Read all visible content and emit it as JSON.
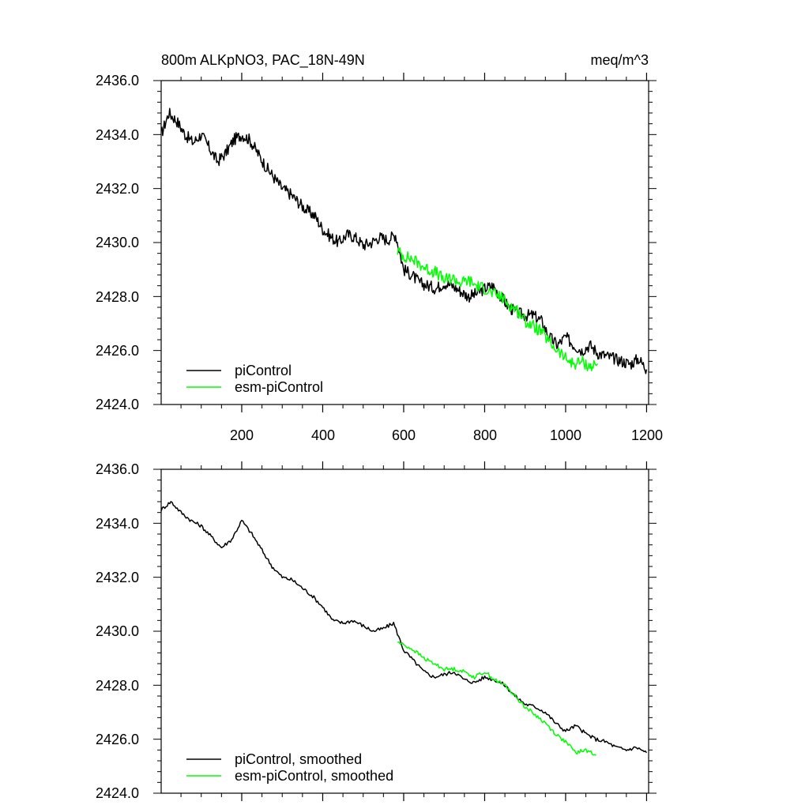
{
  "chart_data": [
    {
      "type": "line",
      "title_left": "800m ALKpNO3, PAC_18N-49N",
      "title_right": "meq/m^3",
      "xlabel": "",
      "ylabel": "",
      "xlim": [
        1,
        1205
      ],
      "ylim": [
        2424.0,
        2436.0
      ],
      "x_ticks": [
        "200",
        "400",
        "600",
        "800",
        "1000",
        "1200"
      ],
      "y_ticks": [
        "2424.0",
        "2426.0",
        "2428.0",
        "2430.0",
        "2432.0",
        "2434.0",
        "2436.0"
      ],
      "legend_position": "bottom-left",
      "series": [
        {
          "name": "piControl",
          "color": "#000000",
          "x": [
            1,
            20,
            40,
            60,
            80,
            100,
            120,
            140,
            160,
            180,
            200,
            220,
            240,
            260,
            280,
            300,
            320,
            340,
            360,
            380,
            400,
            420,
            440,
            460,
            480,
            500,
            520,
            540,
            560,
            580,
            600,
            620,
            640,
            660,
            680,
            700,
            720,
            740,
            760,
            780,
            800,
            820,
            840,
            860,
            880,
            900,
            920,
            940,
            960,
            980,
            1000,
            1020,
            1040,
            1060,
            1080,
            1100,
            1120,
            1140,
            1160,
            1180,
            1200
          ],
          "values": [
            2434.0,
            2434.8,
            2434.5,
            2434.0,
            2433.7,
            2434.0,
            2433.5,
            2433.0,
            2433.3,
            2433.8,
            2434.0,
            2433.8,
            2433.3,
            2432.8,
            2432.4,
            2432.0,
            2431.8,
            2431.5,
            2431.2,
            2431.0,
            2430.5,
            2430.2,
            2430.0,
            2430.3,
            2430.2,
            2429.9,
            2430.0,
            2430.2,
            2430.1,
            2430.3,
            2429.0,
            2428.8,
            2428.5,
            2428.4,
            2428.3,
            2428.5,
            2428.4,
            2428.2,
            2428.0,
            2428.1,
            2428.3,
            2428.4,
            2428.0,
            2427.6,
            2427.4,
            2427.3,
            2427.3,
            2427.1,
            2426.5,
            2426.2,
            2426.5,
            2426.2,
            2426.0,
            2426.2,
            2425.9,
            2425.8,
            2425.7,
            2425.6,
            2425.5,
            2425.7,
            2425.3
          ]
        },
        {
          "name": "esm-piControl",
          "color": "#00ff00",
          "x": [
            585,
            600,
            620,
            640,
            660,
            680,
            700,
            720,
            740,
            760,
            780,
            800,
            820,
            840,
            860,
            880,
            900,
            920,
            940,
            960,
            980,
            1000,
            1020,
            1040,
            1060,
            1080
          ],
          "values": [
            2429.7,
            2429.5,
            2429.4,
            2429.2,
            2429.0,
            2428.9,
            2428.6,
            2428.7,
            2428.5,
            2428.6,
            2428.4,
            2428.3,
            2428.1,
            2428.0,
            2427.7,
            2427.5,
            2427.1,
            2426.9,
            2426.7,
            2426.3,
            2426.0,
            2425.7,
            2425.5,
            2425.6,
            2425.4,
            2425.5
          ]
        }
      ],
      "legend_labels": [
        "piControl",
        "esm-piControl"
      ]
    },
    {
      "type": "line",
      "xlabel": "",
      "ylabel": "",
      "xlim": [
        1,
        1205
      ],
      "ylim": [
        2424.0,
        2436.0
      ],
      "y_ticks": [
        "2424.0",
        "2426.0",
        "2428.0",
        "2430.0",
        "2432.0",
        "2434.0",
        "2436.0"
      ],
      "legend_position": "bottom-left",
      "series": [
        {
          "name": "piControl, smoothed",
          "color": "#000000",
          "x": [
            1,
            25,
            50,
            75,
            100,
            125,
            150,
            175,
            200,
            225,
            250,
            275,
            300,
            325,
            350,
            375,
            400,
            425,
            450,
            475,
            500,
            525,
            550,
            575,
            600,
            625,
            650,
            675,
            700,
            725,
            750,
            775,
            800,
            825,
            850,
            875,
            900,
            925,
            950,
            975,
            1000,
            1025,
            1050,
            1075,
            1100,
            1125,
            1150,
            1175,
            1200
          ],
          "values": [
            2434.5,
            2434.8,
            2434.4,
            2434.1,
            2433.9,
            2433.5,
            2433.1,
            2433.4,
            2434.1,
            2433.6,
            2433.0,
            2432.4,
            2432.0,
            2431.9,
            2431.6,
            2431.3,
            2430.9,
            2430.4,
            2430.3,
            2430.4,
            2430.2,
            2430.0,
            2430.1,
            2430.3,
            2429.3,
            2428.9,
            2428.5,
            2428.3,
            2428.4,
            2428.5,
            2428.2,
            2428.1,
            2428.3,
            2428.2,
            2428.0,
            2427.6,
            2427.3,
            2427.2,
            2427.0,
            2426.6,
            2426.3,
            2426.5,
            2426.2,
            2426.0,
            2425.9,
            2425.7,
            2425.6,
            2425.7,
            2425.5
          ]
        },
        {
          "name": "esm-piControl, smoothed",
          "color": "#00ff00",
          "x": [
            585,
            600,
            625,
            650,
            675,
            700,
            725,
            750,
            775,
            800,
            825,
            850,
            875,
            900,
            925,
            950,
            975,
            1000,
            1025,
            1050,
            1075
          ],
          "values": [
            2429.6,
            2429.5,
            2429.3,
            2429.0,
            2428.8,
            2428.6,
            2428.6,
            2428.5,
            2428.3,
            2428.5,
            2428.2,
            2428.0,
            2427.6,
            2427.2,
            2426.9,
            2426.6,
            2426.2,
            2425.9,
            2425.5,
            2425.6,
            2425.4
          ]
        }
      ],
      "legend_labels": [
        "piControl, smoothed",
        "esm-piControl, smoothed"
      ]
    }
  ]
}
